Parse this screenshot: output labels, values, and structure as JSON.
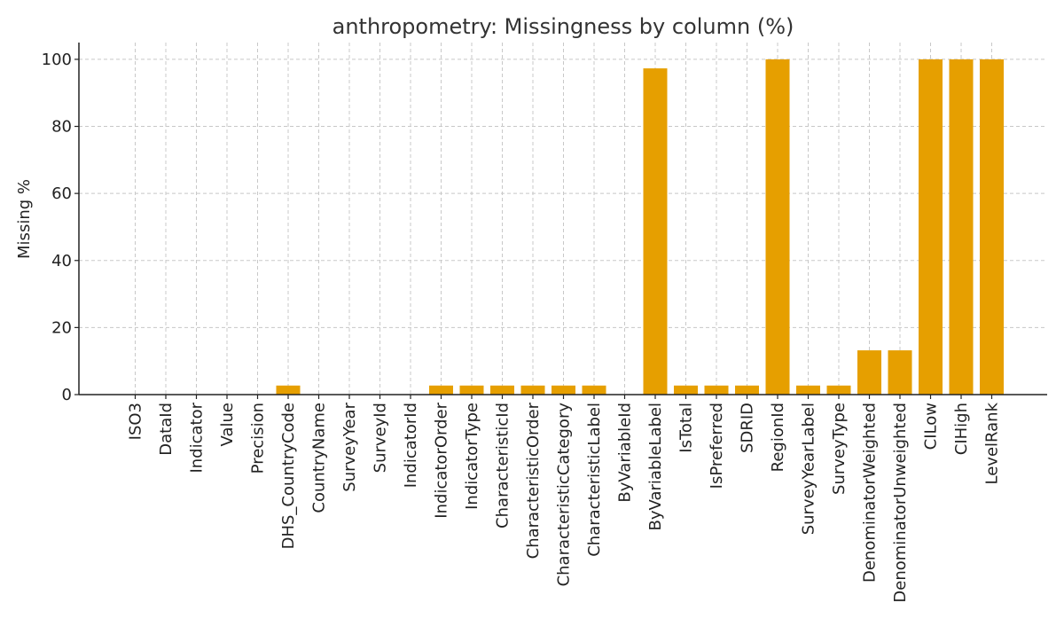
{
  "chart_data": {
    "type": "bar",
    "title": "anthropometry: Missingness by column (%)",
    "xlabel": "",
    "ylabel": "Missing %",
    "ylim": [
      0,
      105
    ],
    "yticks": [
      0,
      20,
      40,
      60,
      80,
      100
    ],
    "grid": true,
    "bar_color": "#E69F00",
    "categories": [
      "ISO3",
      "DataId",
      "Indicator",
      "Value",
      "Precision",
      "DHS_CountryCode",
      "CountryName",
      "SurveyYear",
      "SurveyId",
      "IndicatorId",
      "IndicatorOrder",
      "IndicatorType",
      "CharacteristicId",
      "CharacteristicOrder",
      "CharacteristicCategory",
      "CharacteristicLabel",
      "ByVariableId",
      "ByVariableLabel",
      "IsTotal",
      "IsPreferred",
      "SDRID",
      "RegionId",
      "SurveyYearLabel",
      "SurveyType",
      "DenominatorWeighted",
      "DenominatorUnweighted",
      "CILow",
      "CIHigh",
      "LevelRank"
    ],
    "values": [
      0,
      0,
      0,
      0,
      0,
      2.7,
      0,
      0,
      0,
      0,
      2.7,
      2.7,
      2.7,
      2.7,
      2.7,
      2.7,
      0,
      97.3,
      2.7,
      2.7,
      2.7,
      100,
      2.7,
      2.7,
      13.2,
      13.2,
      100,
      100,
      100
    ]
  }
}
